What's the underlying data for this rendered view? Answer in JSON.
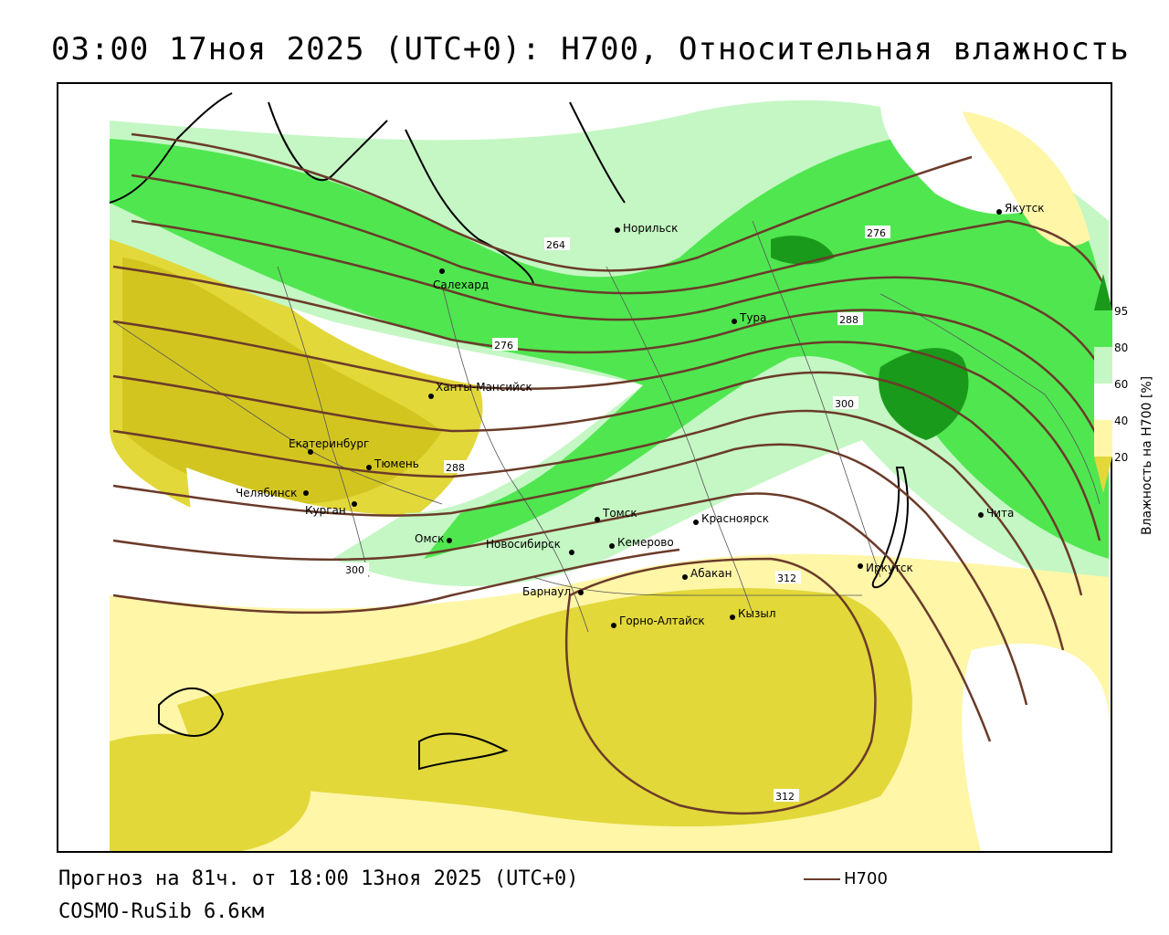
{
  "title": "03:00 17ноя 2025 (UTC+0): H700, Относительная влажность",
  "footer": {
    "forecast": "Прогноз на 81ч. от 18:00 13ноя 2025 (UTC+0)",
    "model": "COSMO-RuSib 6.6км"
  },
  "legend": {
    "line_label": "H700",
    "line_color": "#6b3b2a"
  },
  "colorbar": {
    "title": "Влажность на H700 [%]",
    "ticks": [
      "95",
      "80",
      "60",
      "40",
      "20"
    ],
    "colors": {
      "very_dry": "#c8b400",
      "dry": "#e2d83a",
      "semi_dry": "#fff6a8",
      "neutral": "#ffffff",
      "moist": "#c4f7c4",
      "wet": "#50e650",
      "very_wet": "#1a9a1a"
    }
  },
  "cities": [
    {
      "name": "Норильск"
    },
    {
      "name": "Якутск"
    },
    {
      "name": "Салехард"
    },
    {
      "name": "Тура"
    },
    {
      "name": "Ханты-Мансийск"
    },
    {
      "name": "Екатеринбург"
    },
    {
      "name": "Тюмень"
    },
    {
      "name": "Челябинск"
    },
    {
      "name": "Курган"
    },
    {
      "name": "Омск"
    },
    {
      "name": "Томск"
    },
    {
      "name": "Красноярск"
    },
    {
      "name": "Новосибирск"
    },
    {
      "name": "Кемерово"
    },
    {
      "name": "Барнаул"
    },
    {
      "name": "Абакан"
    },
    {
      "name": "Иркутск"
    },
    {
      "name": "Чита"
    },
    {
      "name": "Горно-Алтайск"
    },
    {
      "name": "Кызыл"
    }
  ],
  "contour_labels": [
    "264",
    "276",
    "276",
    "288",
    "288",
    "300",
    "300",
    "312",
    "312"
  ]
}
